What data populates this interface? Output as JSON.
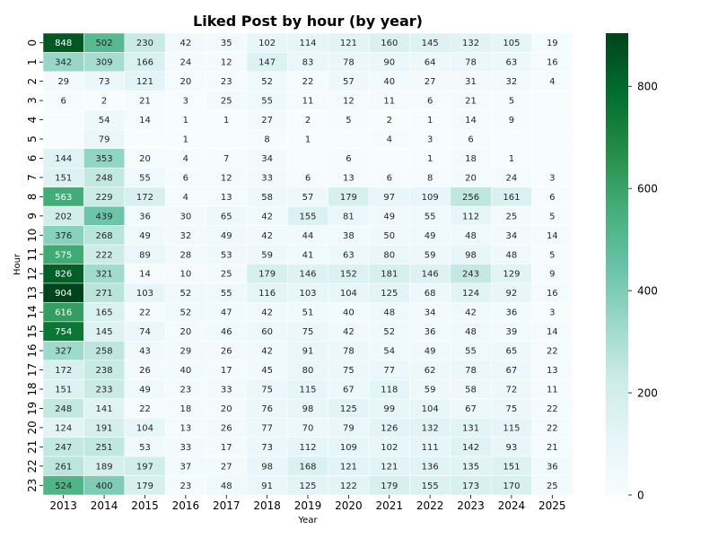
{
  "chart_data": {
    "type": "heatmap",
    "title": "Liked Post by hour (by year)",
    "xlabel": "Year",
    "ylabel": "Hour",
    "x_categories": [
      "2013",
      "2014",
      "2015",
      "2016",
      "2017",
      "2018",
      "2019",
      "2020",
      "2021",
      "2022",
      "2023",
      "2024",
      "2025"
    ],
    "y_categories": [
      "0",
      "1",
      "2",
      "3",
      "4",
      "5",
      "6",
      "7",
      "8",
      "9",
      "10",
      "11",
      "12",
      "13",
      "14",
      "15",
      "16",
      "17",
      "18",
      "19",
      "20",
      "21",
      "22",
      "23"
    ],
    "values": [
      [
        848,
        502,
        230,
        42,
        35,
        102,
        114,
        121,
        160,
        145,
        132,
        105,
        19
      ],
      [
        342,
        309,
        166,
        24,
        12,
        147,
        83,
        78,
        90,
        64,
        78,
        63,
        16
      ],
      [
        29,
        73,
        121,
        20,
        23,
        52,
        22,
        57,
        40,
        27,
        31,
        32,
        4
      ],
      [
        6,
        2,
        21,
        3,
        25,
        55,
        11,
        12,
        11,
        6,
        21,
        5,
        null
      ],
      [
        null,
        54,
        14,
        1,
        1,
        27,
        2,
        5,
        2,
        1,
        14,
        9,
        null
      ],
      [
        null,
        79,
        null,
        1,
        null,
        8,
        1,
        null,
        4,
        3,
        6,
        null,
        null
      ],
      [
        144,
        353,
        20,
        4,
        7,
        34,
        null,
        6,
        null,
        1,
        18,
        1,
        null
      ],
      [
        151,
        248,
        55,
        6,
        12,
        33,
        6,
        13,
        6,
        8,
        20,
        24,
        3
      ],
      [
        563,
        229,
        172,
        4,
        13,
        58,
        57,
        179,
        97,
        109,
        256,
        161,
        6
      ],
      [
        202,
        439,
        36,
        30,
        65,
        42,
        155,
        81,
        49,
        55,
        112,
        25,
        5
      ],
      [
        376,
        268,
        49,
        32,
        49,
        42,
        44,
        38,
        50,
        49,
        48,
        34,
        14
      ],
      [
        575,
        222,
        89,
        28,
        53,
        59,
        41,
        63,
        80,
        59,
        98,
        48,
        5
      ],
      [
        826,
        321,
        14,
        10,
        25,
        179,
        146,
        152,
        181,
        146,
        243,
        129,
        9
      ],
      [
        904,
        271,
        103,
        52,
        55,
        116,
        103,
        104,
        125,
        68,
        124,
        92,
        16
      ],
      [
        616,
        165,
        22,
        52,
        47,
        42,
        51,
        40,
        48,
        34,
        42,
        36,
        3
      ],
      [
        754,
        145,
        74,
        20,
        46,
        60,
        75,
        42,
        52,
        36,
        48,
        39,
        14
      ],
      [
        327,
        258,
        43,
        29,
        26,
        42,
        91,
        78,
        54,
        49,
        55,
        65,
        22
      ],
      [
        172,
        238,
        26,
        40,
        17,
        45,
        80,
        75,
        77,
        62,
        78,
        67,
        13
      ],
      [
        151,
        233,
        49,
        23,
        33,
        75,
        115,
        67,
        118,
        59,
        58,
        72,
        11
      ],
      [
        248,
        141,
        22,
        18,
        20,
        76,
        98,
        125,
        99,
        104,
        67,
        75,
        22
      ],
      [
        124,
        191,
        104,
        13,
        26,
        77,
        70,
        79,
        126,
        132,
        131,
        115,
        22
      ],
      [
        247,
        251,
        53,
        33,
        17,
        73,
        112,
        109,
        102,
        111,
        142,
        93,
        21
      ],
      [
        261,
        189,
        197,
        37,
        27,
        98,
        168,
        121,
        121,
        136,
        135,
        151,
        36
      ],
      [
        524,
        400,
        179,
        23,
        48,
        91,
        125,
        122,
        179,
        155,
        173,
        170,
        25
      ]
    ],
    "vmin": 0,
    "vmax": 904,
    "colormap": "BuGn",
    "colorbar_ticks": [
      0,
      200,
      400,
      600,
      800
    ],
    "colors": {
      "low": "#f7fcfd",
      "high": "#00441b",
      "cell_border": "#ffffff",
      "label_dark": "#262626",
      "label_light": "#ffffff"
    }
  }
}
